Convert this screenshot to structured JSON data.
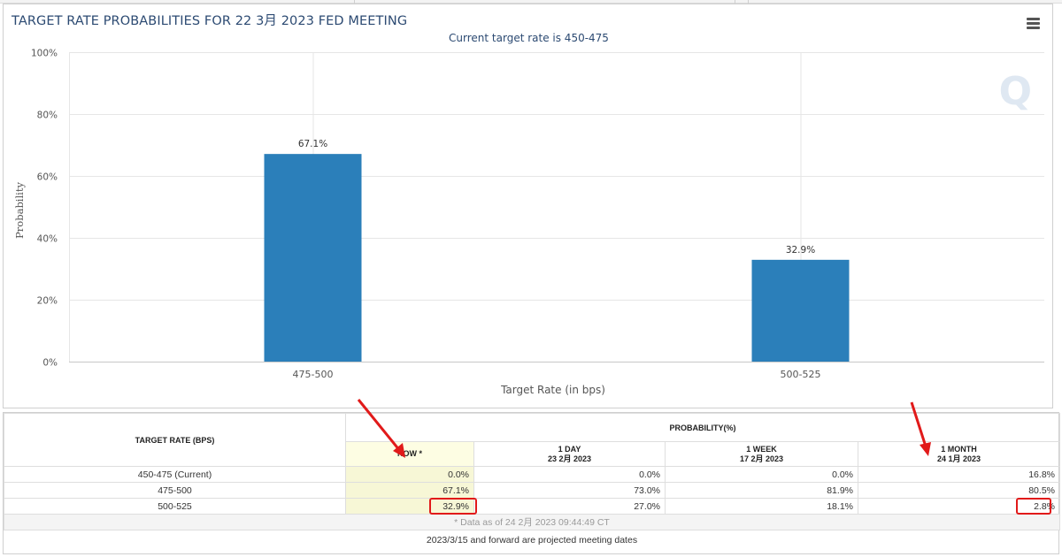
{
  "chart_data": {
    "type": "bar",
    "title": "TARGET RATE PROBABILITIES FOR 22 3月 2023 FED MEETING",
    "subtitle": "Current target rate is 450-475",
    "xlabel": "Target Rate (in bps)",
    "ylabel": "Probability",
    "categories": [
      "475-500",
      "500-525"
    ],
    "values": [
      67.1,
      32.9
    ],
    "data_labels": [
      "67.1%",
      "32.9%"
    ],
    "ylim": [
      0,
      100
    ],
    "yticks": [
      0,
      20,
      40,
      60,
      80,
      100
    ],
    "ytick_labels": [
      "0%",
      "20%",
      "40%",
      "60%",
      "80%",
      "100%"
    ],
    "bar_color": "#2b7fba",
    "grid": true,
    "legend": "none"
  },
  "watermark": "Q",
  "menu_icon": "hamburger-menu-icon",
  "table": {
    "rate_header": "TARGET RATE (BPS)",
    "prob_header": "PROBABILITY(%)",
    "columns": [
      {
        "label": "NOW *",
        "date": ""
      },
      {
        "label": "1 DAY",
        "date": "23 2月 2023"
      },
      {
        "label": "1 WEEK",
        "date": "17 2月 2023"
      },
      {
        "label": "1 MONTH",
        "date": "24 1月 2023"
      }
    ],
    "rows": [
      {
        "rate": "450-475 (Current)",
        "values": [
          "0.0%",
          "0.0%",
          "0.0%",
          "16.8%"
        ]
      },
      {
        "rate": "475-500",
        "values": [
          "67.1%",
          "73.0%",
          "81.9%",
          "80.5%"
        ]
      },
      {
        "rate": "500-525",
        "values": [
          "32.9%",
          "27.0%",
          "18.1%",
          "2.8%"
        ]
      }
    ],
    "footnote": "* Data as of 24 2月 2023 09:44:49 CT",
    "projected_note": "2023/3/15 and forward are projected meeting dates"
  },
  "annotation_color": "#e11a1a"
}
